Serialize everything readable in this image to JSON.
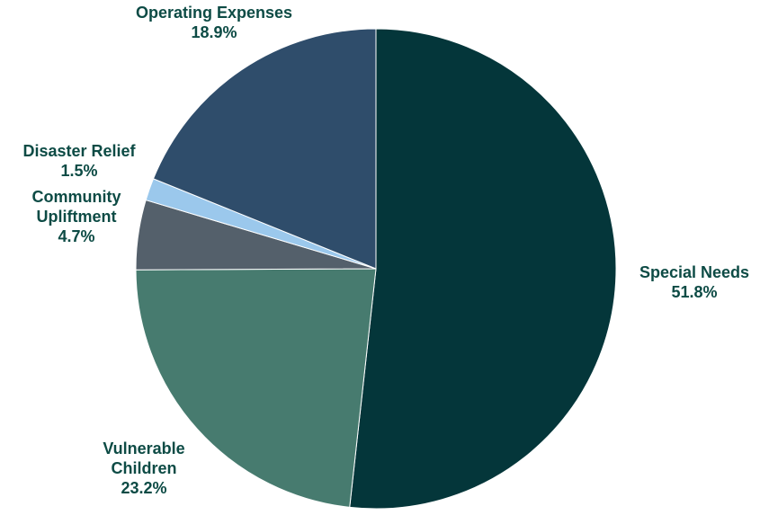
{
  "chart_data": {
    "type": "pie",
    "title": "",
    "slices": [
      {
        "label_lines": [
          "Special Needs"
        ],
        "value": 51.8,
        "value_label": "51.8%",
        "color": "#04363a"
      },
      {
        "label_lines": [
          "Vulnerable",
          "Children"
        ],
        "value": 23.2,
        "value_label": "23.2%",
        "color": "#477b6f"
      },
      {
        "label_lines": [
          "Community",
          "Upliftment"
        ],
        "value": 4.7,
        "value_label": "4.7%",
        "color": "#54606b"
      },
      {
        "label_lines": [
          "Disaster Relief"
        ],
        "value": 1.5,
        "value_label": "1.5%",
        "color": "#9bc8ec"
      },
      {
        "label_lines": [
          "Operating Expenses"
        ],
        "value": 18.9,
        "value_label": "18.9%",
        "color": "#2f4d6b"
      }
    ],
    "start": "12 o'clock",
    "direction": "clockwise",
    "label_color": "#0d4b45"
  }
}
